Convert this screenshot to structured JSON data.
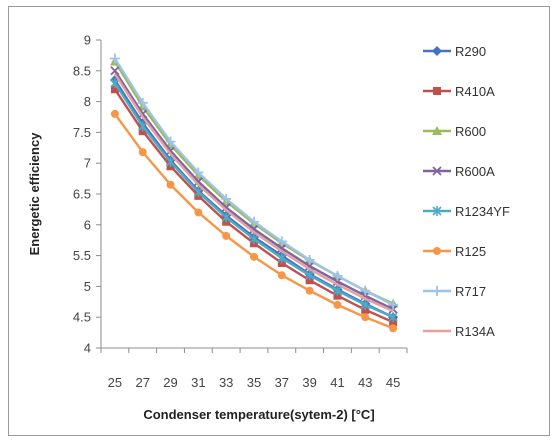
{
  "chart_data": {
    "type": "line",
    "title": "",
    "xlabel": "Condenser temperature(sytem-2) [°C]",
    "ylabel": "Energetic efficiency",
    "x": [
      25,
      27,
      29,
      31,
      33,
      35,
      37,
      39,
      41,
      43,
      45
    ],
    "xlim": [
      25,
      45
    ],
    "ylim": [
      4,
      9
    ],
    "yticks": [
      "4",
      "4.5",
      "5",
      "5.5",
      "6",
      "6.5",
      "7",
      "7.5",
      "8",
      "8.5",
      "9"
    ],
    "grid": false,
    "legend_position": "right",
    "series": [
      {
        "name": "R290",
        "color": "#4472C4",
        "marker": "diamond",
        "values": [
          8.35,
          7.65,
          7.05,
          6.55,
          6.15,
          5.8,
          5.5,
          5.2,
          4.95,
          4.72,
          4.5
        ]
      },
      {
        "name": "R410A",
        "color": "#C0504D",
        "marker": "square",
        "values": [
          8.2,
          7.52,
          6.95,
          6.47,
          6.05,
          5.7,
          5.38,
          5.1,
          4.85,
          4.62,
          4.42
        ]
      },
      {
        "name": "R600",
        "color": "#9BBB59",
        "marker": "triangle",
        "values": [
          8.65,
          7.92,
          7.3,
          6.8,
          6.38,
          6.02,
          5.7,
          5.42,
          5.17,
          4.93,
          4.72
        ]
      },
      {
        "name": "R600A",
        "color": "#8064A2",
        "marker": "x",
        "values": [
          8.5,
          7.8,
          7.2,
          6.7,
          6.28,
          5.93,
          5.62,
          5.33,
          5.08,
          4.85,
          4.63
        ]
      },
      {
        "name": "R1234YF",
        "color": "#4BACC6",
        "marker": "star",
        "values": [
          8.3,
          7.6,
          7.02,
          6.53,
          6.12,
          5.77,
          5.46,
          5.18,
          4.93,
          4.7,
          4.5
        ]
      },
      {
        "name": "R125",
        "color": "#F79646",
        "marker": "circle",
        "values": [
          7.8,
          7.18,
          6.65,
          6.2,
          5.82,
          5.48,
          5.18,
          4.93,
          4.7,
          4.5,
          4.32
        ]
      },
      {
        "name": "R717",
        "color": "#9DC3E6",
        "marker": "plus",
        "values": [
          8.7,
          7.98,
          7.35,
          6.85,
          6.42,
          6.05,
          5.73,
          5.43,
          5.17,
          4.93,
          4.7
        ]
      },
      {
        "name": "R134A",
        "color": "#E6A0A0",
        "marker": "line",
        "values": [
          8.45,
          7.75,
          7.15,
          6.65,
          6.24,
          5.88,
          5.57,
          5.28,
          5.03,
          4.8,
          4.6
        ]
      }
    ]
  }
}
